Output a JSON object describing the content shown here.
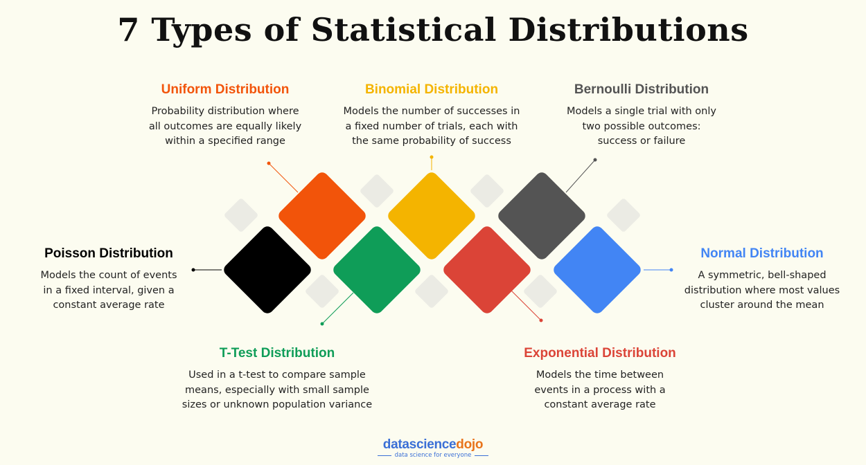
{
  "title": "7 Types of Statistical Distributions",
  "distributions": [
    {
      "name": "Uniform Distribution",
      "color": "#f2540a",
      "lines": [
        "Probability distribution where",
        "all outcomes are equally likely",
        "within a specified range"
      ]
    },
    {
      "name": "Binomial Distribution",
      "color": "#f4b400",
      "lines": [
        "Models the number of successes in",
        "a fixed number of trials, each with",
        "the same probability of success"
      ]
    },
    {
      "name": "Bernoulli Distribution",
      "color": "#545454",
      "lines": [
        "Models a single trial with only",
        "two possible outcomes:",
        "success or failure"
      ]
    },
    {
      "name": "Poisson Distribution",
      "color": "#000000",
      "lines": [
        "Models the count of events",
        "in a fixed interval, given a",
        "constant average rate"
      ]
    },
    {
      "name": "Normal Distribution",
      "color": "#4285f4",
      "lines": [
        "A symmetric, bell-shaped",
        "distribution where most values",
        "cluster around the mean"
      ]
    },
    {
      "name": "T-Test Distribution",
      "color": "#0f9d58",
      "lines": [
        "Used in a t-test to compare sample",
        "means, especially with small sample",
        "sizes or unknown population variance"
      ]
    },
    {
      "name": "Exponential Distribution",
      "color": "#db4437",
      "lines": [
        "Models the time between",
        "events in a process with a",
        "constant average rate"
      ]
    }
  ],
  "logo": {
    "data": "data",
    "sci": "sci",
    "ence": "ence",
    "dojo": "dojo",
    "tagline": "data science for everyone",
    "data_color": "#3a6fd6",
    "dojo_color": "#e8741c"
  }
}
